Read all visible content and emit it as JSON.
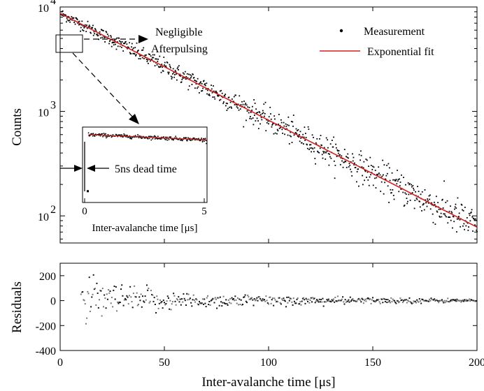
{
  "chart_data": [
    {
      "type": "scatter",
      "title": "",
      "xlabel": "",
      "ylabel": "Counts",
      "xlim": [
        0,
        200
      ],
      "ylim": [
        55,
        10000
      ],
      "yscale": "log",
      "yticks": [
        {
          "value": 100,
          "base": "10",
          "exp": "2"
        },
        {
          "value": 1000,
          "base": "10",
          "exp": "3"
        },
        {
          "value": 10000,
          "base": "10",
          "exp": "4"
        }
      ],
      "legend": {
        "placement": "top-right",
        "entries": [
          "Measurement",
          "Exponential fit"
        ]
      },
      "series": [
        {
          "name": "Measurement",
          "kind": "points",
          "color": "#000000",
          "noise_dex": 0.04,
          "x_step": 0.25
        },
        {
          "name": "Exponential fit",
          "kind": "line",
          "color": "#d61f1f",
          "x": [
            0,
            200
          ],
          "y": [
            8700,
            78
          ]
        }
      ],
      "annotations": {
        "afterpulsing": [
          "Negligible",
          "Afterpulsing"
        ],
        "dead_time": "5ns dead time"
      },
      "inset": {
        "xlabel_prefix": "Inter-avalanche time [",
        "xlabel_mu": "μ",
        "xlabel_suffix": "s]",
        "xlim": [
          -0.2,
          5
        ],
        "xticks": [
          "0",
          "5"
        ],
        "dead_time_ns": 5,
        "first_point": {
          "x": 0.02,
          "y": 0.15
        },
        "data": [
          {
            "x": 0.05,
            "y": 0.9
          },
          {
            "x": 5,
            "y": 0.83
          }
        ]
      }
    },
    {
      "type": "scatter",
      "title": "",
      "xlabel_prefix": "Inter-avalanche time [",
      "xlabel_mu": "μ",
      "xlabel_suffix": "s]",
      "ylabel": "Residuals",
      "xlim": [
        0,
        200
      ],
      "ylim": [
        -400,
        300
      ],
      "xticks": [
        "0",
        "50",
        "100",
        "150",
        "200"
      ],
      "yticks": [
        "200",
        "0",
        "-200",
        "-400"
      ],
      "series": [
        {
          "name": "",
          "x_start": 10,
          "x_end": 200,
          "x_step": 0.4,
          "amplitude_envelope": [
            {
              "x": 10,
              "amp": 150
            },
            {
              "x": 60,
              "amp": 60
            },
            {
              "x": 120,
              "amp": 30
            },
            {
              "x": 200,
              "amp": 12
            }
          ]
        }
      ]
    }
  ]
}
